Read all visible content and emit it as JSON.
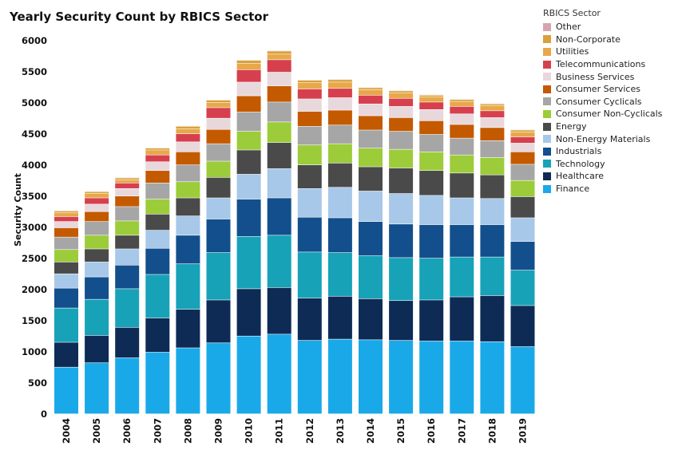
{
  "chart_data": {
    "type": "bar",
    "stacked": true,
    "title": "Yearly Security Count by RBICS Sector",
    "xlabel": "",
    "ylabel": "Security Count",
    "ylim": [
      0,
      6000
    ],
    "yticks": [
      0,
      500,
      1000,
      1500,
      2000,
      2500,
      3000,
      3500,
      4000,
      4500,
      5000,
      5500,
      6000
    ],
    "grid": false,
    "legend_title": "RBICS Sector",
    "legend_position": "right",
    "categories": [
      "2004",
      "2005",
      "2006",
      "2007",
      "2008",
      "2009",
      "2010",
      "2011",
      "2012",
      "2013",
      "2014",
      "2015",
      "2016",
      "2017",
      "2018",
      "2019"
    ],
    "series": [
      {
        "name": "Finance",
        "color": "#1aa9e8",
        "values": [
          750,
          820,
          900,
          990,
          1060,
          1140,
          1250,
          1280,
          1180,
          1200,
          1190,
          1180,
          1170,
          1170,
          1160,
          1080
        ]
      },
      {
        "name": "Healthcare",
        "color": "#0d2b55",
        "values": [
          400,
          440,
          490,
          550,
          620,
          690,
          760,
          750,
          680,
          690,
          660,
          640,
          660,
          710,
          740,
          660
        ]
      },
      {
        "name": "Technology",
        "color": "#17a2b8",
        "values": [
          550,
          580,
          620,
          700,
          730,
          760,
          840,
          840,
          740,
          700,
          690,
          690,
          670,
          640,
          620,
          570
        ]
      },
      {
        "name": "Industrials",
        "color": "#134f8c",
        "values": [
          320,
          360,
          380,
          420,
          460,
          540,
          600,
          600,
          560,
          560,
          550,
          540,
          540,
          520,
          520,
          460
        ]
      },
      {
        "name": "Non-Energy Materials",
        "color": "#a7c8e8",
        "values": [
          230,
          240,
          260,
          290,
          310,
          340,
          400,
          470,
          460,
          490,
          490,
          490,
          470,
          430,
          420,
          380
        ]
      },
      {
        "name": "Energy",
        "color": "#4a4a4a",
        "values": [
          190,
          210,
          220,
          260,
          290,
          330,
          390,
          420,
          380,
          390,
          390,
          410,
          400,
          400,
          380,
          340
        ]
      },
      {
        "name": "Consumer Non-Cyclicals",
        "color": "#9ccc3a",
        "values": [
          200,
          220,
          230,
          240,
          260,
          260,
          300,
          330,
          320,
          310,
          300,
          300,
          300,
          290,
          280,
          260
        ]
      },
      {
        "name": "Consumer Cyclicals",
        "color": "#a6a6a6",
        "values": [
          200,
          220,
          230,
          260,
          270,
          280,
          310,
          320,
          300,
          300,
          290,
          290,
          280,
          270,
          270,
          260
        ]
      },
      {
        "name": "Consumer Services",
        "color": "#c45a00",
        "values": [
          150,
          160,
          170,
          200,
          210,
          230,
          260,
          260,
          240,
          240,
          230,
          220,
          220,
          220,
          210,
          200
        ]
      },
      {
        "name": "Business Services",
        "color": "#e8d8dc",
        "values": [
          100,
          120,
          120,
          140,
          160,
          180,
          220,
          220,
          200,
          200,
          190,
          180,
          180,
          170,
          160,
          140
        ]
      },
      {
        "name": "Telecommunications",
        "color": "#d6404e",
        "values": [
          80,
          100,
          90,
          110,
          130,
          170,
          200,
          200,
          160,
          150,
          140,
          130,
          120,
          120,
          110,
          100
        ]
      },
      {
        "name": "Utilities",
        "color": "#e8a84a",
        "values": [
          60,
          70,
          50,
          80,
          80,
          80,
          100,
          90,
          100,
          100,
          90,
          90,
          80,
          80,
          80,
          80
        ]
      },
      {
        "name": "Non-Corporate",
        "color": "#d9a13a",
        "values": [
          30,
          30,
          30,
          30,
          40,
          40,
          50,
          50,
          40,
          40,
          30,
          30,
          30,
          30,
          30,
          30
        ]
      },
      {
        "name": "Other",
        "color": "#d4a5b0",
        "values": [
          10,
          10,
          10,
          10,
          10,
          10,
          10,
          10,
          10,
          10,
          10,
          10,
          10,
          10,
          10,
          10
        ]
      }
    ]
  }
}
